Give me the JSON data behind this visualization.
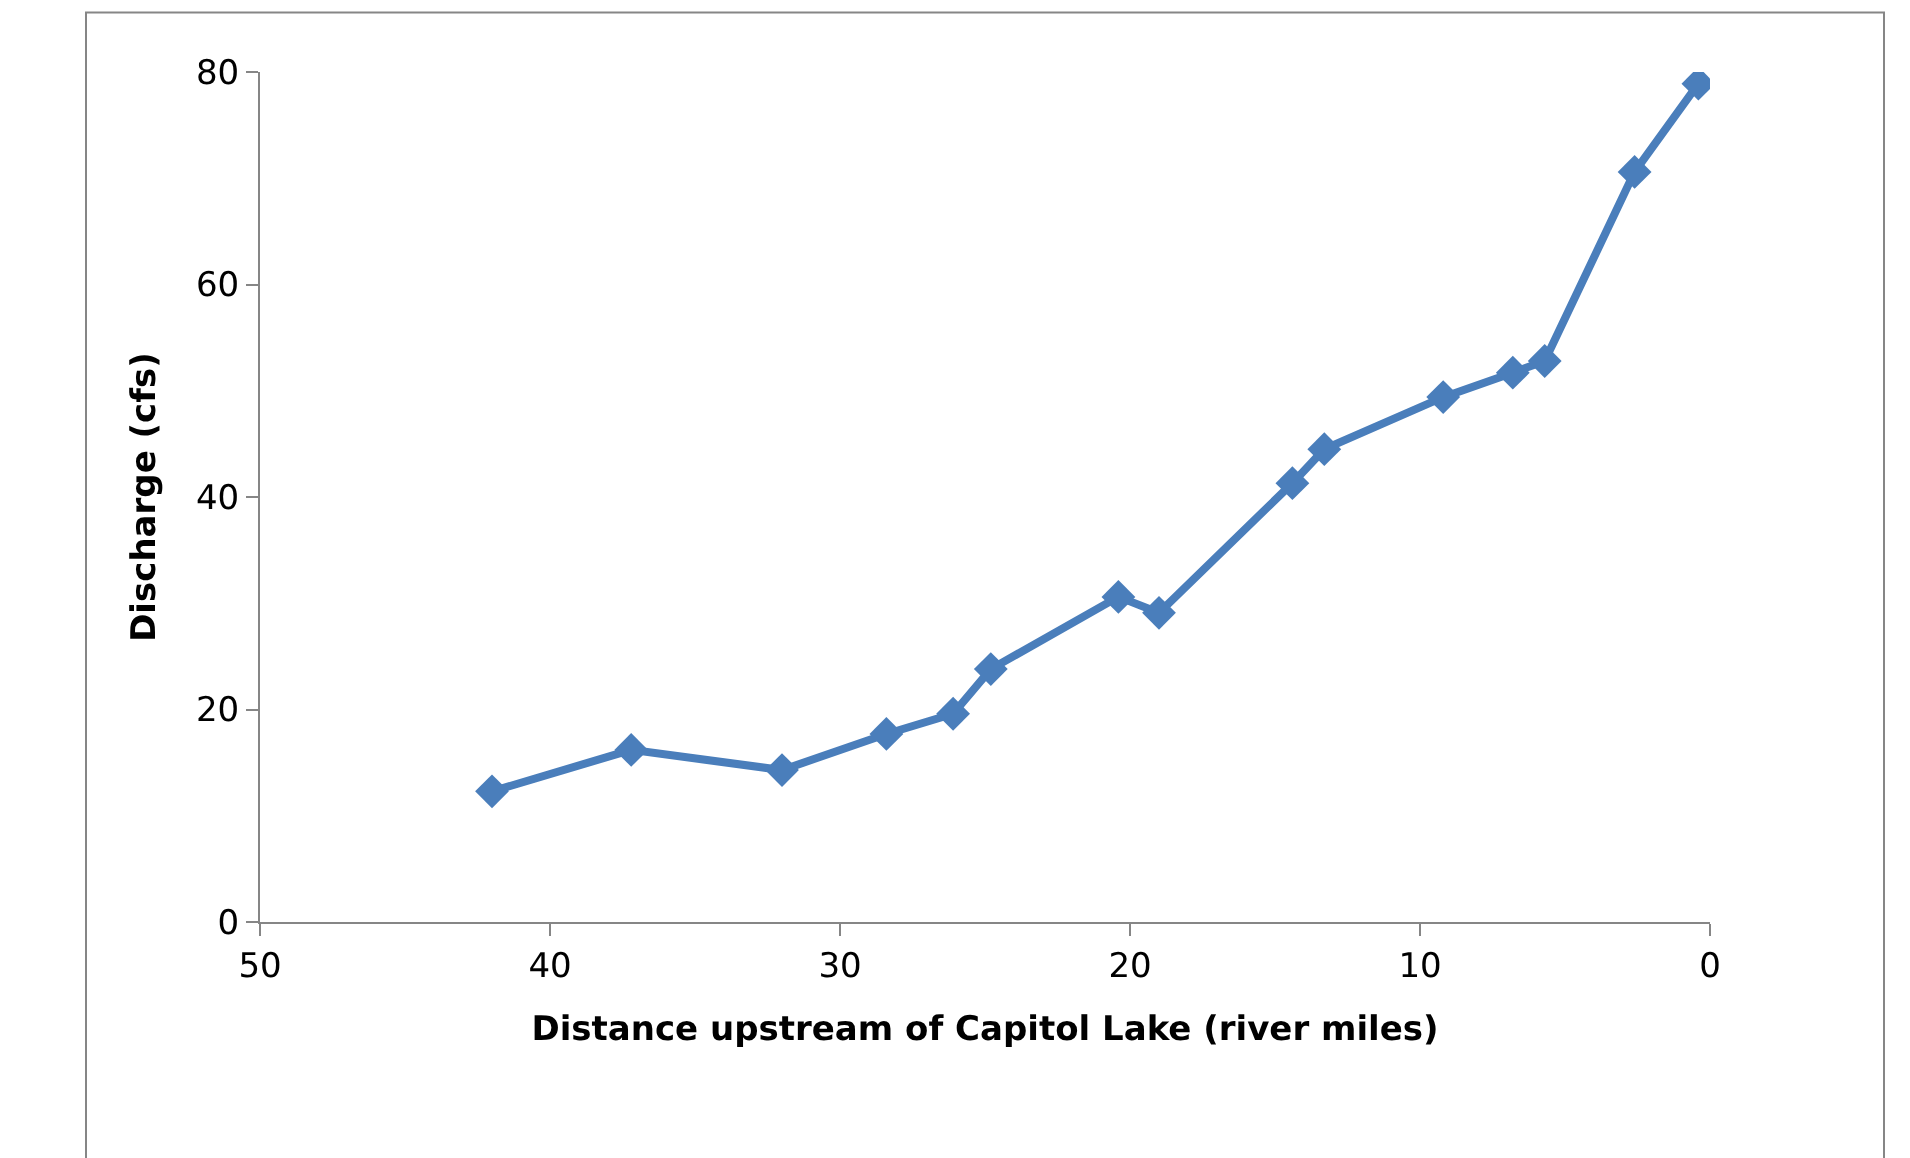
{
  "chart_data": {
    "type": "line",
    "xlabel": "Distance upstream of Capitol Lake (river miles)",
    "ylabel": "Discharge (cfs)",
    "x": [
      42.0,
      37.2,
      32.0,
      28.4,
      26.1,
      24.8,
      20.4,
      19.0,
      14.4,
      13.3,
      9.2,
      6.8,
      5.7,
      2.6,
      0.4
    ],
    "series": [
      {
        "color": "#4a7ebb",
        "values": [
          12.3,
          16.2,
          14.3,
          17.7,
          19.6,
          23.8,
          30.6,
          29.1,
          41.3,
          44.5,
          49.4,
          51.7,
          52.8,
          70.6,
          78.9
        ]
      }
    ],
    "xlim": [
      50,
      0
    ],
    "xticks": [
      50,
      40,
      30,
      20,
      10,
      0
    ],
    "ylim": [
      0,
      80
    ],
    "yticks": [
      0,
      20,
      40,
      60,
      80
    ],
    "marker": "diamond",
    "line_style": "solid"
  }
}
